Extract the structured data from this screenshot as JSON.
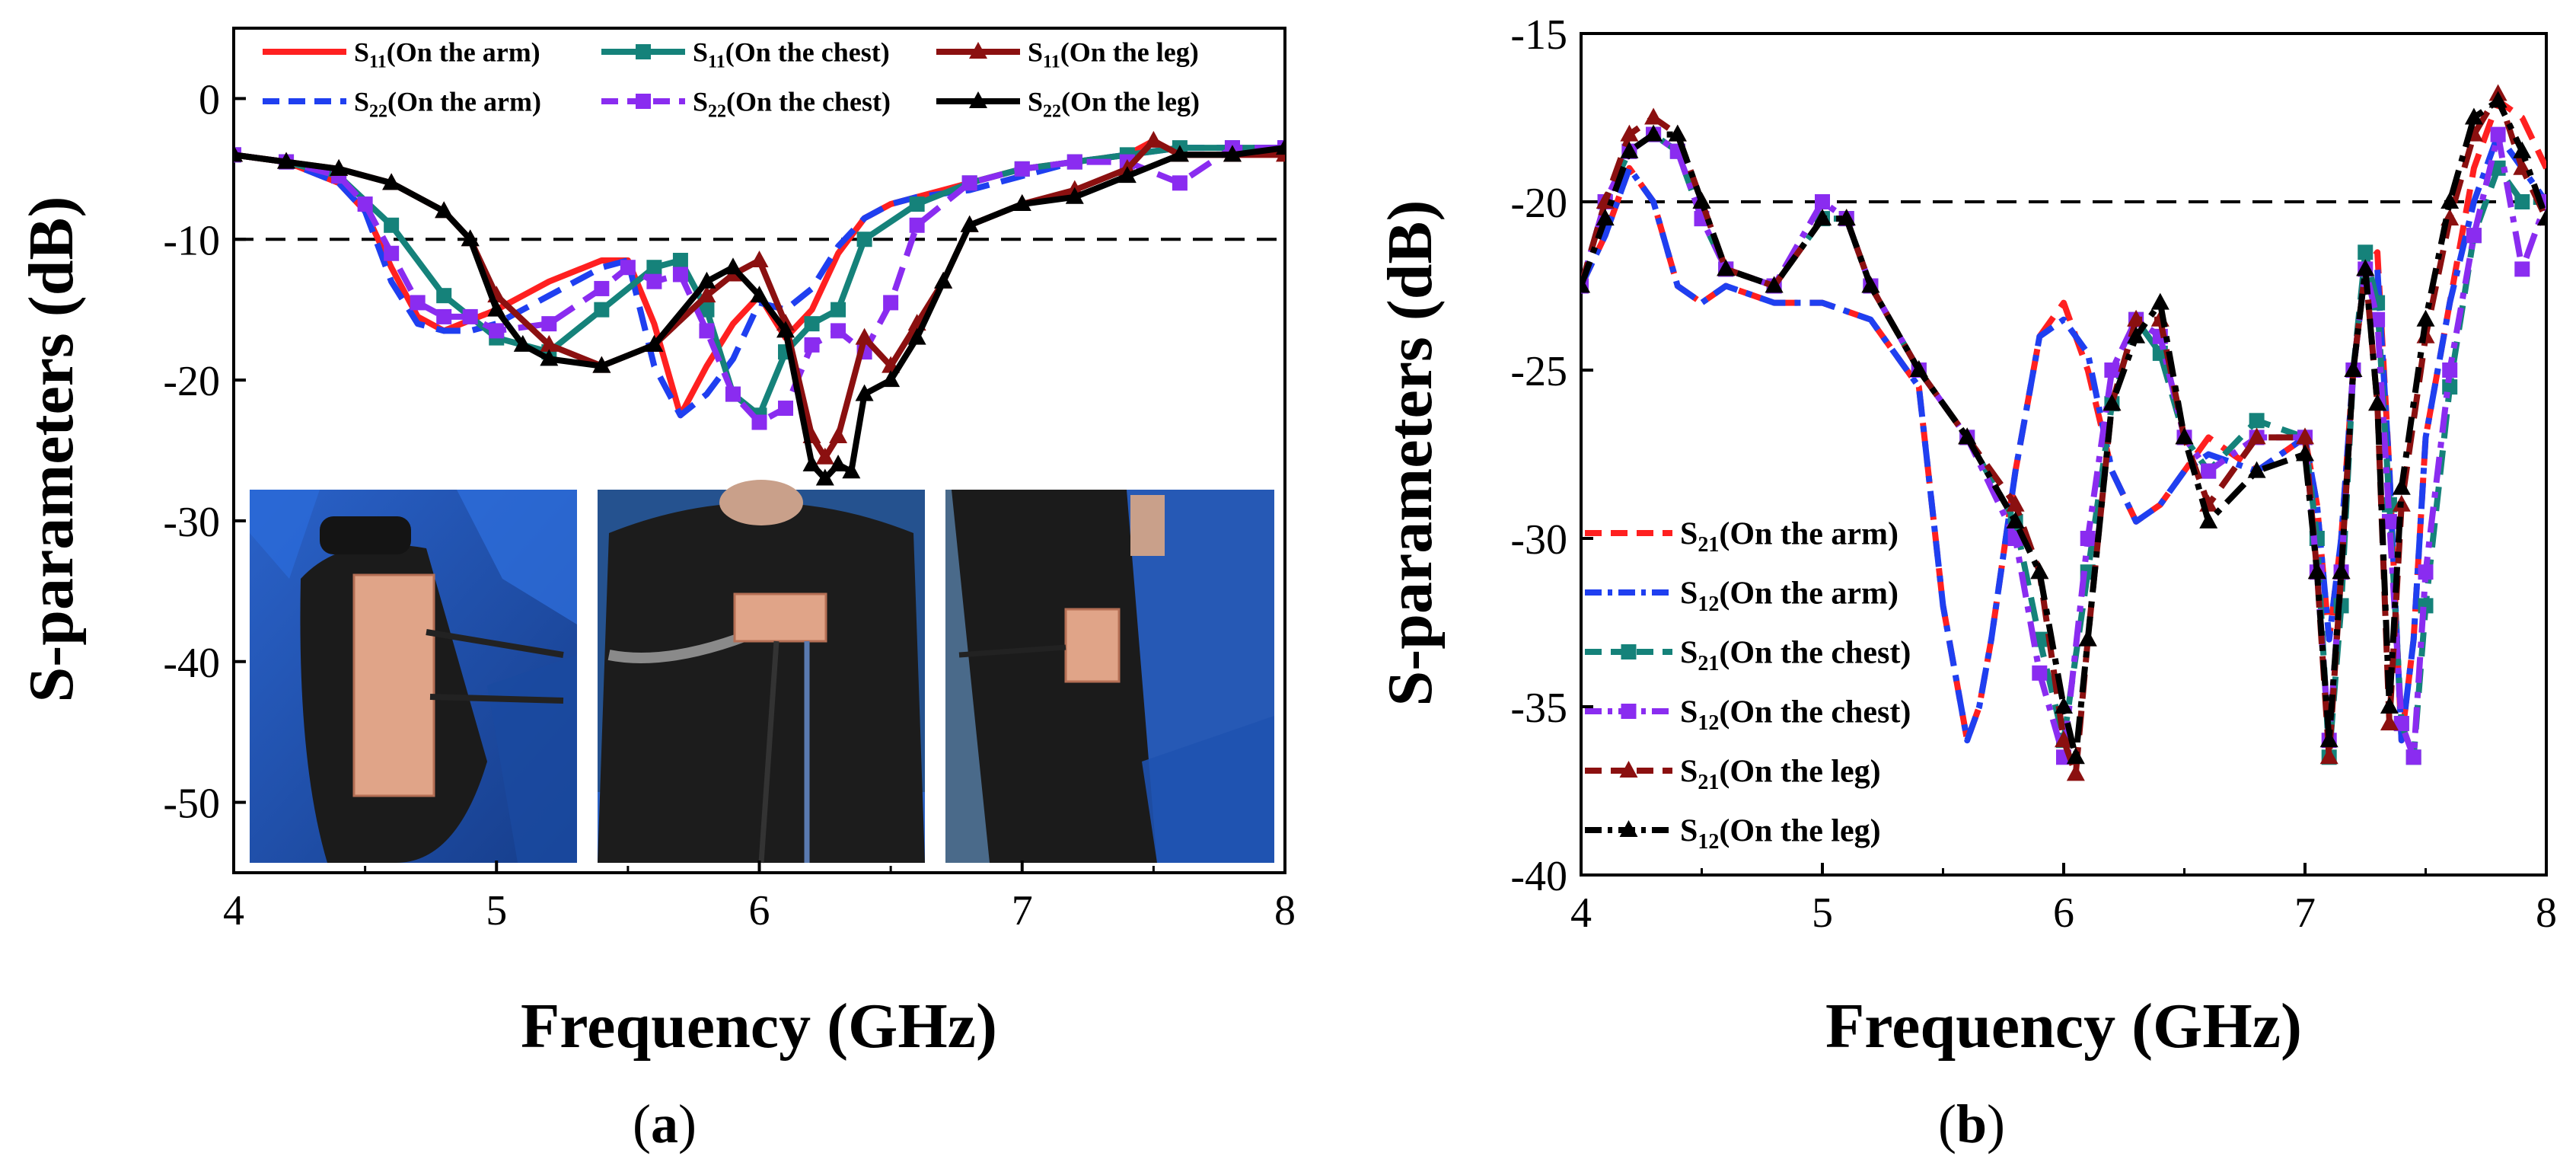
{
  "chart_data": [
    {
      "panel": "(a)",
      "type": "line",
      "xlabel": "Frequency (GHz)",
      "ylabel": "S-parameters (dB)",
      "xlim": [
        4,
        8
      ],
      "ylim": [
        -55,
        5
      ],
      "xticks": [
        4,
        5,
        6,
        7,
        8
      ],
      "yticks": [
        0,
        -10,
        -20,
        -30,
        -40,
        -50
      ],
      "threshold": -10,
      "legend_position": "top",
      "series": [
        {
          "name": "S11(On the arm)",
          "sub": "11",
          "loc": "On the arm",
          "color": "#ff2020",
          "dash": "solid",
          "marker": "none",
          "x": [
            4,
            4.2,
            4.4,
            4.5,
            4.6,
            4.7,
            4.8,
            5.0,
            5.2,
            5.4,
            5.5,
            5.6,
            5.7,
            5.8,
            5.9,
            6.0,
            6.1,
            6.2,
            6.3,
            6.4,
            6.5,
            6.6,
            6.8,
            7.0,
            7.2,
            7.4,
            7.5,
            7.6,
            7.8,
            8.0
          ],
          "y": [
            -4,
            -4.5,
            -6,
            -8,
            -12,
            -15.5,
            -16.5,
            -15,
            -13,
            -11.5,
            -11.5,
            -16,
            -22.5,
            -19,
            -16,
            -14,
            -17,
            -15,
            -11,
            -8.5,
            -7.5,
            -7,
            -6,
            -5,
            -4.5,
            -4,
            -3,
            -4,
            -4,
            -4
          ]
        },
        {
          "name": "S22(On the arm)",
          "sub": "22",
          "loc": "On the arm",
          "color": "#1f3ff0",
          "dash": "dashed",
          "marker": "none",
          "x": [
            4,
            4.2,
            4.4,
            4.5,
            4.6,
            4.7,
            4.8,
            4.9,
            5.0,
            5.2,
            5.4,
            5.5,
            5.6,
            5.7,
            5.8,
            5.9,
            6.0,
            6.1,
            6.2,
            6.3,
            6.4,
            6.5,
            6.6,
            6.8,
            7.0,
            7.2,
            7.4,
            7.6,
            7.8,
            8.0
          ],
          "y": [
            -4,
            -4.5,
            -6,
            -8,
            -13,
            -16,
            -16.5,
            -16.5,
            -16,
            -14,
            -12,
            -11.5,
            -19,
            -22.5,
            -21,
            -18.5,
            -14.5,
            -15,
            -13.5,
            -10.5,
            -8.5,
            -7.5,
            -7,
            -6.5,
            -5.5,
            -4.5,
            -4,
            -3.5,
            -3.5,
            -3.5
          ]
        },
        {
          "name": "S11(On the chest)",
          "sub": "11",
          "loc": "On the chest",
          "color": "#15827a",
          "dash": "solid",
          "marker": "square",
          "x": [
            4,
            4.2,
            4.4,
            4.6,
            4.8,
            5.0,
            5.2,
            5.4,
            5.6,
            5.7,
            5.8,
            5.9,
            6.0,
            6.1,
            6.2,
            6.3,
            6.4,
            6.6,
            6.8,
            7.0,
            7.2,
            7.4,
            7.6,
            7.8,
            8.0
          ],
          "y": [
            -4,
            -4.5,
            -5.5,
            -9,
            -14,
            -17,
            -18,
            -15,
            -12,
            -11.5,
            -15,
            -21,
            -22.5,
            -18,
            -16,
            -15,
            -10,
            -7.5,
            -6,
            -5,
            -4.5,
            -4,
            -3.5,
            -3.5,
            -3.5
          ]
        },
        {
          "name": "S22(On the chest)",
          "sub": "22",
          "loc": "On the chest",
          "color": "#8a2cf0",
          "dash": "dashed",
          "marker": "square",
          "x": [
            4,
            4.2,
            4.4,
            4.5,
            4.6,
            4.7,
            4.8,
            4.9,
            5.0,
            5.2,
            5.4,
            5.5,
            5.6,
            5.7,
            5.8,
            5.9,
            6.0,
            6.1,
            6.2,
            6.3,
            6.4,
            6.5,
            6.6,
            6.8,
            7.0,
            7.2,
            7.4,
            7.6,
            7.8,
            8.0
          ],
          "y": [
            -4,
            -4.5,
            -5.5,
            -7.5,
            -11,
            -14.5,
            -15.5,
            -15.5,
            -16.5,
            -16,
            -13.5,
            -12,
            -13,
            -12.5,
            -16.5,
            -21,
            -23,
            -22,
            -17.5,
            -16.5,
            -18,
            -14.5,
            -9,
            -6,
            -5,
            -4.5,
            -4.5,
            -6,
            -3.5,
            -3.5
          ]
        },
        {
          "name": "S11(On the leg)",
          "sub": "11",
          "loc": "On the leg",
          "color": "#8b1010",
          "dash": "solid",
          "marker": "triangle",
          "x": [
            4,
            4.2,
            4.4,
            4.6,
            4.8,
            4.9,
            5.0,
            5.2,
            5.4,
            5.6,
            5.8,
            5.9,
            6.0,
            6.1,
            6.2,
            6.25,
            6.3,
            6.4,
            6.5,
            6.6,
            6.7,
            6.8,
            7.0,
            7.2,
            7.4,
            7.5,
            7.6,
            7.8,
            8.0
          ],
          "y": [
            -4,
            -4.5,
            -5,
            -6,
            -8,
            -10,
            -14,
            -17.5,
            -19,
            -17.5,
            -14,
            -12.5,
            -11.5,
            -16,
            -24,
            -25.5,
            -24,
            -17,
            -19,
            -16,
            -13,
            -9,
            -7.5,
            -6.5,
            -5,
            -3,
            -4,
            -4,
            -4
          ]
        },
        {
          "name": "S22(On the leg)",
          "sub": "22",
          "loc": "On the leg",
          "color": "#000000",
          "dash": "solid",
          "marker": "triangle",
          "x": [
            4,
            4.2,
            4.4,
            4.6,
            4.8,
            4.9,
            5.0,
            5.1,
            5.2,
            5.4,
            5.6,
            5.8,
            5.9,
            6.0,
            6.1,
            6.2,
            6.25,
            6.3,
            6.35,
            6.4,
            6.5,
            6.6,
            6.7,
            6.8,
            7.0,
            7.2,
            7.4,
            7.6,
            7.8,
            8.0
          ],
          "y": [
            -4,
            -4.5,
            -5,
            -6,
            -8,
            -10,
            -15,
            -17.5,
            -18.5,
            -19,
            -17.5,
            -13,
            -12,
            -14,
            -16.5,
            -26,
            -27,
            -26,
            -26.5,
            -21,
            -20,
            -17,
            -13,
            -9,
            -7.5,
            -7,
            -5.5,
            -4,
            -4,
            -3.5
          ]
        }
      ]
    },
    {
      "panel": "(b)",
      "type": "line",
      "xlabel": "Frequency (GHz)",
      "ylabel": "S-parameters (dB)",
      "xlim": [
        4,
        8
      ],
      "ylim": [
        -40,
        -15
      ],
      "xticks": [
        4,
        5,
        6,
        7,
        8
      ],
      "yticks": [
        -15,
        -20,
        -25,
        -30,
        -35,
        -40
      ],
      "threshold": -20,
      "legend_position": "bottom-left",
      "series": [
        {
          "name": "S21(On the arm)",
          "sub": "21",
          "loc": "On the arm",
          "color": "#ff2020",
          "dash": "dashed",
          "marker": "none",
          "x": [
            4,
            4.1,
            4.2,
            4.3,
            4.4,
            4.5,
            4.6,
            4.8,
            5.0,
            5.2,
            5.4,
            5.5,
            5.6,
            5.65,
            5.7,
            5.8,
            5.9,
            6.0,
            6.1,
            6.2,
            6.3,
            6.4,
            6.5,
            6.6,
            6.8,
            7.0,
            7.05,
            7.1,
            7.15,
            7.2,
            7.25,
            7.3,
            7.35,
            7.4,
            7.45,
            7.5,
            7.6,
            7.7,
            7.8,
            7.9,
            8.0
          ],
          "y": [
            -22.5,
            -21,
            -19,
            -20,
            -22.5,
            -23,
            -22.5,
            -23,
            -23,
            -23.5,
            -25.5,
            -32,
            -36,
            -35,
            -33,
            -28,
            -24,
            -23,
            -25,
            -28,
            -29.5,
            -29,
            -28,
            -27,
            -28,
            -27,
            -29,
            -33,
            -30,
            -25,
            -22,
            -21.5,
            -28,
            -36,
            -33,
            -27,
            -23,
            -19,
            -17,
            -17.5,
            -19
          ]
        },
        {
          "name": "S12(On the arm)",
          "sub": "12",
          "loc": "On the arm",
          "color": "#1f3ff0",
          "dash": "dashdot",
          "marker": "none",
          "x": [
            4,
            4.1,
            4.2,
            4.3,
            4.4,
            4.5,
            4.6,
            4.8,
            5.0,
            5.2,
            5.4,
            5.5,
            5.6,
            5.65,
            5.7,
            5.8,
            5.9,
            6.0,
            6.1,
            6.2,
            6.3,
            6.4,
            6.5,
            6.6,
            6.8,
            7.0,
            7.05,
            7.1,
            7.15,
            7.2,
            7.25,
            7.3,
            7.35,
            7.4,
            7.45,
            7.5,
            7.6,
            7.7,
            7.8,
            7.9,
            8.0
          ],
          "y": [
            -22.5,
            -21,
            -19,
            -20,
            -22.5,
            -23,
            -22.5,
            -23,
            -23,
            -23.5,
            -25.5,
            -32,
            -36,
            -35,
            -33,
            -28,
            -24,
            -23.5,
            -24.5,
            -28,
            -29.5,
            -29,
            -28,
            -27.5,
            -28,
            -27,
            -29,
            -33,
            -30,
            -25,
            -22,
            -22,
            -28,
            -36,
            -33,
            -27,
            -23,
            -20,
            -18,
            -19,
            -20
          ]
        },
        {
          "name": "S21(On the chest)",
          "sub": "21",
          "loc": "On the chest",
          "color": "#15827a",
          "dash": "dashed",
          "marker": "square",
          "x": [
            4,
            4.1,
            4.2,
            4.3,
            4.4,
            4.5,
            4.6,
            4.8,
            5.0,
            5.1,
            5.2,
            5.4,
            5.6,
            5.8,
            5.9,
            6.0,
            6.1,
            6.2,
            6.3,
            6.4,
            6.5,
            6.6,
            6.8,
            7.0,
            7.05,
            7.1,
            7.15,
            7.2,
            7.25,
            7.3,
            7.35,
            7.4,
            7.45,
            7.5,
            7.6,
            7.7,
            7.8,
            7.9,
            8.0
          ],
          "y": [
            -22.5,
            -20,
            -18.5,
            -18,
            -18.5,
            -20.5,
            -22,
            -22.5,
            -20.5,
            -20.5,
            -22.5,
            -25,
            -27,
            -29.5,
            -33,
            -36,
            -31,
            -26,
            -23.5,
            -24.5,
            -27,
            -28,
            -26.5,
            -27,
            -30,
            -36.5,
            -32,
            -25,
            -21.5,
            -23,
            -29,
            -35.5,
            -36.5,
            -32,
            -25.5,
            -21,
            -19,
            -20,
            -20
          ]
        },
        {
          "name": "S12(On the chest)",
          "sub": "12",
          "loc": "On the chest",
          "color": "#8a2cf0",
          "dash": "dashdot",
          "marker": "square",
          "x": [
            4,
            4.1,
            4.2,
            4.3,
            4.4,
            4.5,
            4.6,
            4.8,
            5.0,
            5.1,
            5.2,
            5.4,
            5.6,
            5.8,
            5.9,
            6.0,
            6.1,
            6.2,
            6.3,
            6.4,
            6.5,
            6.6,
            6.8,
            7.0,
            7.05,
            7.1,
            7.15,
            7.2,
            7.25,
            7.3,
            7.35,
            7.4,
            7.45,
            7.5,
            7.6,
            7.7,
            7.8,
            7.9,
            8.0
          ],
          "y": [
            -22.5,
            -20,
            -18.5,
            -18,
            -18.5,
            -20.5,
            -22,
            -22.5,
            -20,
            -20.5,
            -22.5,
            -25,
            -27,
            -30,
            -34,
            -36.5,
            -30,
            -25,
            -23.5,
            -24,
            -27,
            -28,
            -27,
            -27,
            -31,
            -36,
            -31,
            -25,
            -22,
            -23.5,
            -29.5,
            -35.5,
            -36.5,
            -31,
            -25,
            -21,
            -18,
            -22,
            -20
          ]
        },
        {
          "name": "S21(On the leg)",
          "sub": "21",
          "loc": "On the leg",
          "color": "#8b1010",
          "dash": "dashed",
          "marker": "triangle",
          "x": [
            4,
            4.1,
            4.2,
            4.3,
            4.4,
            4.5,
            4.6,
            4.8,
            5.0,
            5.1,
            5.2,
            5.4,
            5.6,
            5.8,
            5.9,
            6.0,
            6.05,
            6.1,
            6.2,
            6.3,
            6.4,
            6.5,
            6.6,
            6.8,
            7.0,
            7.05,
            7.1,
            7.15,
            7.2,
            7.25,
            7.3,
            7.35,
            7.4,
            7.5,
            7.6,
            7.7,
            7.8,
            7.9,
            8.0
          ],
          "y": [
            -22.5,
            -20,
            -18,
            -17.5,
            -18,
            -20,
            -22,
            -22.5,
            -20.5,
            -20.5,
            -22.5,
            -25,
            -27,
            -29,
            -31,
            -36,
            -37,
            -33,
            -26,
            -23.5,
            -23.5,
            -27,
            -29,
            -27,
            -27,
            -31,
            -36.5,
            -31,
            -25,
            -22,
            -26,
            -35.5,
            -29,
            -24,
            -20.5,
            -18,
            -16.8,
            -19,
            -20.5
          ]
        },
        {
          "name": "S12(On the leg)",
          "sub": "12",
          "loc": "On the leg",
          "color": "#000000",
          "dash": "dashdot",
          "marker": "triangle",
          "x": [
            4,
            4.1,
            4.2,
            4.3,
            4.4,
            4.5,
            4.6,
            4.8,
            5.0,
            5.1,
            5.2,
            5.4,
            5.6,
            5.8,
            5.9,
            6.0,
            6.05,
            6.1,
            6.2,
            6.3,
            6.4,
            6.5,
            6.6,
            6.8,
            7.0,
            7.05,
            7.1,
            7.15,
            7.2,
            7.25,
            7.3,
            7.35,
            7.4,
            7.5,
            7.6,
            7.7,
            7.8,
            7.9,
            8.0
          ],
          "y": [
            -22.5,
            -20.5,
            -18.5,
            -18,
            -18,
            -20,
            -22,
            -22.5,
            -20.5,
            -20.5,
            -22.5,
            -25,
            -27,
            -29.5,
            -31,
            -35,
            -36.5,
            -33,
            -26,
            -24,
            -23,
            -27,
            -29.5,
            -28,
            -27.5,
            -31,
            -36,
            -31,
            -25,
            -22,
            -26,
            -35,
            -28.5,
            -23.5,
            -20,
            -17.5,
            -17,
            -18.5,
            -20.5
          ]
        }
      ]
    }
  ],
  "photos": [
    {
      "name": "photo-arm",
      "subject": "arm"
    },
    {
      "name": "photo-chest",
      "subject": "chest"
    },
    {
      "name": "photo-leg",
      "subject": "leg"
    }
  ],
  "colors": {
    "photo_bg": "#1f4fa8",
    "clothing": "#1a1a1a",
    "antenna": "#e0a488"
  }
}
